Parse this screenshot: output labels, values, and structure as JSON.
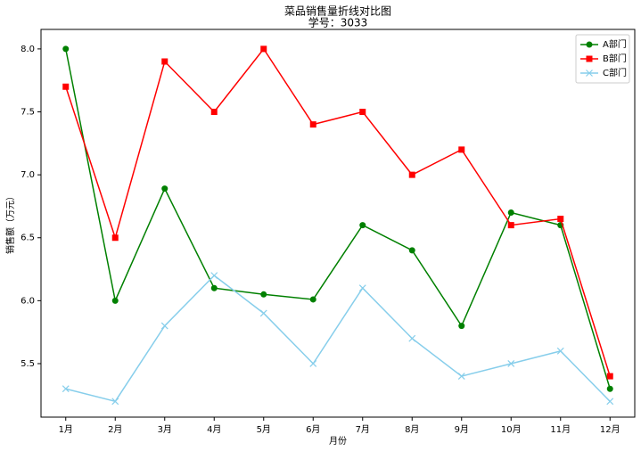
{
  "chart_data": {
    "type": "line",
    "title": "菜品销售量折线对比图",
    "subtitle": "学号：3033",
    "xlabel": "月份",
    "ylabel": "销售额（万元）",
    "categories": [
      "1月",
      "2月",
      "3月",
      "4月",
      "5月",
      "6月",
      "7月",
      "8月",
      "9月",
      "10月",
      "11月",
      "12月"
    ],
    "series": [
      {
        "name": "A部门",
        "color": "green",
        "marker": "circle",
        "values": [
          8.0,
          6.0,
          6.89,
          6.1,
          6.05,
          6.01,
          6.6,
          6.4,
          5.8,
          6.7,
          6.6,
          5.3
        ]
      },
      {
        "name": "B部门",
        "color": "red",
        "marker": "square",
        "values": [
          7.7,
          6.5,
          7.9,
          7.5,
          8.0,
          7.4,
          7.5,
          7.0,
          7.2,
          6.6,
          6.65,
          5.4
        ]
      },
      {
        "name": "C部门",
        "color": "skyblue",
        "marker": "x",
        "values": [
          5.3,
          5.2,
          5.8,
          6.2,
          5.9,
          5.5,
          6.1,
          5.7,
          5.4,
          5.5,
          5.6,
          5.2
        ]
      }
    ],
    "ylim": [
      5.075,
      8.155
    ],
    "yticks": [
      {
        "value": 5.5,
        "label": "5.5"
      },
      {
        "value": 6.0,
        "label": "6.0"
      },
      {
        "value": 6.5,
        "label": "6.5"
      },
      {
        "value": 7.0,
        "label": "7.0"
      },
      {
        "value": 7.5,
        "label": "7.5"
      },
      {
        "value": 8.0,
        "label": "8.0"
      }
    ],
    "legend": "upper right"
  }
}
